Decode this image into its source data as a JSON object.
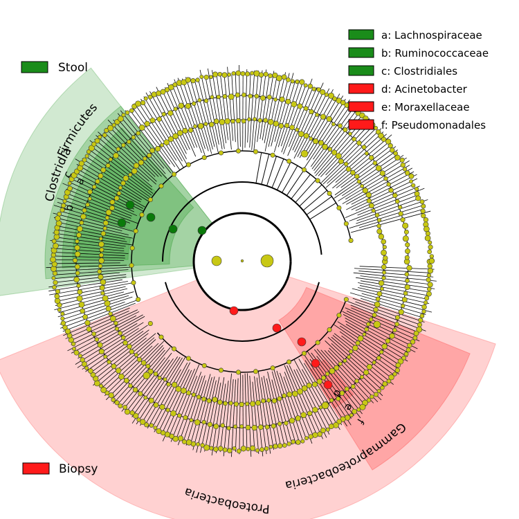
{
  "chart_data": {
    "type": "cladogram",
    "title": "",
    "groups": [
      {
        "name": "Stool",
        "color": "#1a8c1a",
        "label": "Stool"
      },
      {
        "name": "Biopsy",
        "color": "#ff1a1a",
        "label": "Biopsy"
      }
    ],
    "clades": [
      {
        "label": "Firmicutes",
        "group": "Stool",
        "level": "phylum"
      },
      {
        "label": "Clostridia",
        "group": "Stool",
        "level": "class"
      },
      {
        "label": "c",
        "group": "Stool",
        "level": "order"
      },
      {
        "label": "a",
        "group": "Stool",
        "level": "family"
      },
      {
        "label": "b",
        "group": "Stool",
        "level": "family"
      },
      {
        "label": "Proteobacteria",
        "group": "Biopsy",
        "level": "phylum"
      },
      {
        "label": "Gammaproteobacteria",
        "group": "Biopsy",
        "level": "class"
      },
      {
        "label": "f",
        "group": "Biopsy",
        "level": "order"
      },
      {
        "label": "e",
        "group": "Biopsy",
        "level": "family"
      },
      {
        "label": "d",
        "group": "Biopsy",
        "level": "genus"
      }
    ],
    "legend": [
      {
        "key": "a",
        "text": "a: Lachnospiraceae",
        "color": "#1a8c1a"
      },
      {
        "key": "b",
        "text": "b: Ruminococcaceae",
        "color": "#1a8c1a"
      },
      {
        "key": "c",
        "text": "c: Clostridiales",
        "color": "#1a8c1a"
      },
      {
        "key": "d",
        "text": "d: Acinetobacter",
        "color": "#ff1a1a"
      },
      {
        "key": "e",
        "text": "e: Moraxellaceae",
        "color": "#ff1a1a"
      },
      {
        "key": "f",
        "text": "f: Pseudomonadales",
        "color": "#ff1a1a"
      }
    ]
  }
}
